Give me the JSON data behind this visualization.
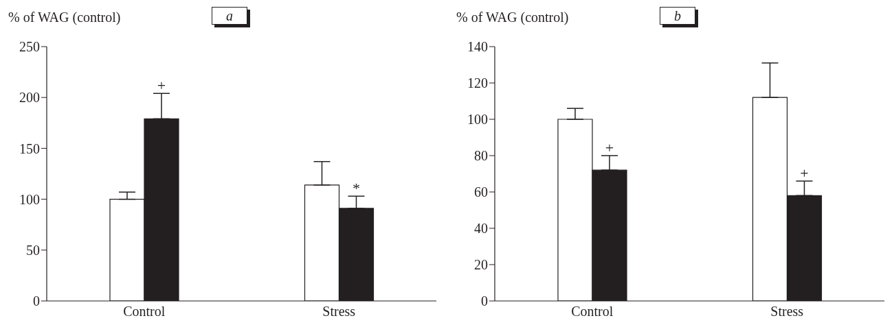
{
  "chart_data": [
    {
      "type": "bar",
      "ylabel": "% of WAG (control)",
      "categories": [
        "Control",
        "Stress"
      ],
      "ylim": [
        0,
        250
      ],
      "yticks": [
        0,
        50,
        100,
        150,
        200,
        250
      ],
      "grid": false,
      "legend": false,
      "series": [
        {
          "color": "#ffffff",
          "values": [
            100,
            114
          ],
          "errors": [
            [
              100,
              107
            ],
            [
              114,
              137
            ]
          ]
        },
        {
          "color": "#231f20",
          "values": [
            179,
            91
          ],
          "errors": [
            [
              179,
              204
            ],
            [
              91,
              103
            ]
          ]
        }
      ],
      "annotations": [
        "a",
        {
          "text": "+",
          "x": "Control",
          "y": 179
        },
        {
          "text": "*",
          "x": "Stress",
          "y": 91
        }
      ]
    },
    {
      "type": "bar",
      "ylabel": "% of WAG (control)",
      "categories": [
        "Control",
        "Stress"
      ],
      "ylim": [
        0,
        140
      ],
      "yticks": [
        0,
        20,
        40,
        60,
        80,
        100,
        120,
        140
      ],
      "grid": false,
      "legend": false,
      "series": [
        {
          "color": "#ffffff",
          "values": [
            100,
            112
          ],
          "errors": [
            [
              100,
              106
            ],
            [
              112,
              131
            ]
          ]
        },
        {
          "color": "#231f20",
          "values": [
            72,
            58
          ],
          "errors": [
            [
              72,
              80
            ],
            [
              58,
              66
            ]
          ]
        }
      ],
      "annotations": [
        "b",
        {
          "text": "+",
          "x": "Control",
          "y": 72
        },
        {
          "text": "+",
          "x": "Stress",
          "y": 58
        }
      ]
    }
  ]
}
